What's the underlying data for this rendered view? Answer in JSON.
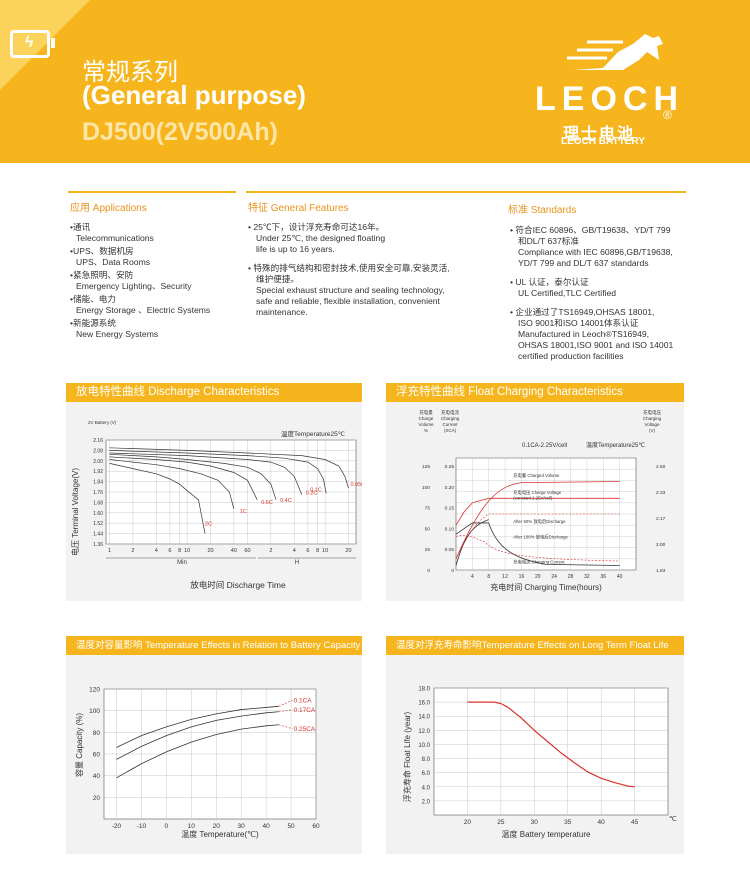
{
  "header": {
    "title_cn": "常规系列",
    "title_en": "(General purpose)",
    "model": "DJ500(2V500Ah)",
    "logo_word": "LEOCH",
    "logo_cn": "理士电池",
    "logo_en": "LEOCH BATTERY",
    "logo_reg": "®"
  },
  "sections": {
    "applications": {
      "heading": "应用 Applications",
      "items": [
        {
          "cn": "•通讯",
          "en": "Telecommunications"
        },
        {
          "cn": "•UPS、数据机房",
          "en": "UPS、Data Rooms"
        },
        {
          "cn": "•紧急照明、安防",
          "en": "Emergency Lighting、Security"
        },
        {
          "cn": "•储能、电力",
          "en": "Energy Storage 、Electric Systems"
        },
        {
          "cn": "•新能源系统",
          "en": "New Energy Systems"
        }
      ]
    },
    "features": {
      "heading": "特征 General Features",
      "items": [
        {
          "cn": "• 25℃下，设计浮充寿命可达16年。",
          "en1": "Under 25℃, the designed floating",
          "en2": "life is up to 16 years."
        },
        {
          "cn": "• 特殊的排气结构和密封技术,使用安全可靠,安装灵活,",
          "cn2": "维护便捷。",
          "en1": "Special exhaust structure and sealing technology,",
          "en2": "safe and reliable, flexible installation, convenient",
          "en3": "maintenance."
        }
      ]
    },
    "standards": {
      "heading": "标准 Standards",
      "items": [
        {
          "l1": "• 符合IEC 60896、GB/T19638、YD/T 799",
          "l2": "和DL/T 637标准",
          "l3": "Compliance with IEC 60896,GB/T19638,",
          "l4": "YD/T 799 and DL/T 637 standards"
        },
        {
          "l1": "• UL 认证，泰尔认证",
          "l2": "UL Certified,TLC Certified"
        },
        {
          "l1": "• 企业通过了TS16949,OHSAS 18001,",
          "l2": "ISO 9001和ISO 14001体系认证",
          "l3": "Manufactured in Leoch®TS16949,",
          "l4": "OHSAS 18001,ISO 9001 and ISO 14001",
          "l5": "certified production facilities"
        }
      ]
    }
  },
  "chart_data": [
    {
      "type": "line",
      "title": "放电特性曲线 Discharge Characteristics",
      "xlabel": "放电时间 Discharge Time",
      "ylabel": "电压 Terminal Voltage(V)",
      "y_unit_label": "2V Battery (V)",
      "annotation": "温度Temperature25℃",
      "x_scale": "log",
      "x_ticks_min": [
        "1",
        "2",
        "4",
        "6",
        "8",
        "10",
        "20",
        "40",
        "60"
      ],
      "x_ticks_h": [
        "2",
        "4",
        "6",
        "8",
        "10",
        "20"
      ],
      "x_groups": [
        "Min",
        "H"
      ],
      "ylim": [
        1.36,
        2.16
      ],
      "y_ticks": [
        "2.16",
        "2.08",
        "2.00",
        "1.92",
        "1.84",
        "1.76",
        "1.68",
        "1.60",
        "1.52",
        "1.44",
        "1.36"
      ],
      "series": [
        {
          "name": "2C",
          "x": [
            1,
            2,
            4,
            6,
            8,
            10,
            14,
            17
          ],
          "y": [
            1.98,
            1.94,
            1.9,
            1.86,
            1.82,
            1.77,
            1.7,
            1.44
          ]
        },
        {
          "name": "1C",
          "x": [
            1,
            2,
            4,
            8,
            15,
            25,
            35,
            40
          ],
          "y": [
            2.01,
            1.99,
            1.97,
            1.94,
            1.9,
            1.85,
            1.76,
            1.63
          ]
        },
        {
          "name": "0.6C",
          "x": [
            1,
            4,
            10,
            20,
            40,
            60,
            80
          ],
          "y": [
            2.03,
            2.01,
            1.99,
            1.96,
            1.91,
            1.85,
            1.7
          ]
        },
        {
          "name": "0.4C",
          "x": [
            1,
            4,
            10,
            30,
            60,
            90,
            120,
            140
          ],
          "y": [
            2.05,
            2.03,
            2.01,
            1.98,
            1.95,
            1.9,
            1.82,
            1.7
          ]
        },
        {
          "name": "0.2C",
          "x": [
            1,
            10,
            60,
            120,
            180,
            240,
            300
          ],
          "y": [
            2.06,
            2.04,
            2.01,
            1.99,
            1.95,
            1.88,
            1.74
          ]
        },
        {
          "name": "0.1C",
          "x": [
            1,
            10,
            60,
            180,
            360,
            480,
            570,
            620
          ],
          "y": [
            2.08,
            2.06,
            2.04,
            2.02,
            1.99,
            1.94,
            1.86,
            1.75
          ]
        },
        {
          "name": "0.05C",
          "x": [
            1,
            10,
            60,
            300,
            600,
            900,
            1080,
            1200
          ],
          "y": [
            2.1,
            2.08,
            2.06,
            2.04,
            2.01,
            1.96,
            1.88,
            1.79
          ]
        }
      ]
    },
    {
      "type": "line",
      "title": "浮充特性曲线 Float Charging Characteristics",
      "xlabel": "充电时间 Charging Time(hours)",
      "annotation_top": "0.1CA-2.25V/cell",
      "annotation_temp": "温度Temperature25℃",
      "left_axis_1": {
        "label": [
          "充电量",
          "Charge",
          "Volume",
          "%"
        ],
        "ticks": [
          "125",
          "100",
          "75",
          "50",
          "25",
          "0"
        ]
      },
      "left_axis_2": {
        "label": [
          "充电电流",
          "Charging",
          "Current",
          "(XCA)"
        ],
        "ticks": [
          "0.25",
          "0.20",
          "0.15",
          "0.10",
          "0.05",
          "0"
        ]
      },
      "right_axis": {
        "label": [
          "充电电压",
          "Charging",
          "Voltage",
          "(V)"
        ],
        "ticks": [
          "2.50",
          "2.33",
          "2.17",
          "2.00",
          "1.83"
        ]
      },
      "x_ticks": [
        "4",
        "8",
        "12",
        "16",
        "20",
        "24",
        "28",
        "32",
        "36",
        "40"
      ],
      "series_labels": [
        "充电量 Charged Volume",
        "充电电压 Charge Voltage",
        "(constant 2.25V/cell)",
        "After 50% 放电后Discharge",
        "After 100% 放电后Discharge",
        "充电电流 Charging Current"
      ]
    },
    {
      "type": "line",
      "title": "温度对容量影响 Temperature Effects in Relation to Battery Capacity",
      "xlabel": "温度  Temperature(℃)",
      "ylabel": "容量 Capacity (%)",
      "x_ticks": [
        "-20",
        "-10",
        "0",
        "10",
        "20",
        "30",
        "40",
        "50",
        "60"
      ],
      "y_ticks": [
        "120",
        "100",
        "80",
        "60",
        "40",
        "20"
      ],
      "xlim": [
        -25,
        60
      ],
      "ylim": [
        0,
        120
      ],
      "series": [
        {
          "name": "0.1CA",
          "x": [
            -20,
            -10,
            0,
            10,
            20,
            30,
            40,
            45
          ],
          "y": [
            66,
            77,
            85,
            92,
            97,
            101,
            103,
            104
          ]
        },
        {
          "name": "0.17CA",
          "x": [
            -20,
            -10,
            0,
            10,
            20,
            30,
            40,
            45
          ],
          "y": [
            55,
            67,
            77,
            85,
            91,
            95,
            98,
            99
          ]
        },
        {
          "name": "0.25CA",
          "x": [
            -20,
            -10,
            0,
            10,
            20,
            30,
            40,
            45
          ],
          "y": [
            38,
            51,
            62,
            71,
            78,
            83,
            86,
            87
          ]
        }
      ]
    },
    {
      "type": "line",
      "title": "温度对浮充寿命影响Temperature Effects on Long Term Float Life",
      "xlabel": "温度  Battery temperature",
      "ylabel": "浮充寿命  Float Life (year)",
      "x_unit": "℃",
      "x_ticks": [
        "20",
        "25",
        "30",
        "35",
        "40",
        "45"
      ],
      "y_ticks": [
        "18.0",
        "16.0",
        "14.0",
        "12.0",
        "10.0",
        "8.0",
        "6.0",
        "4.0",
        "2.0"
      ],
      "xlim": [
        15,
        50
      ],
      "ylim": [
        0,
        18
      ],
      "series": [
        {
          "name": "",
          "x": [
            20,
            22,
            24,
            25,
            26,
            28,
            30,
            32,
            34,
            36,
            38,
            40,
            42,
            44,
            45
          ],
          "y": [
            16,
            16,
            16,
            15.8,
            15.3,
            13.8,
            12,
            10.4,
            8.8,
            7.4,
            6.1,
            5.2,
            4.6,
            4.1,
            4
          ]
        }
      ]
    }
  ],
  "colors": {
    "accent": "#f6b51d",
    "curve_red": "#d9322f",
    "curve_black": "#333333",
    "grid": "#bbbbbb"
  }
}
